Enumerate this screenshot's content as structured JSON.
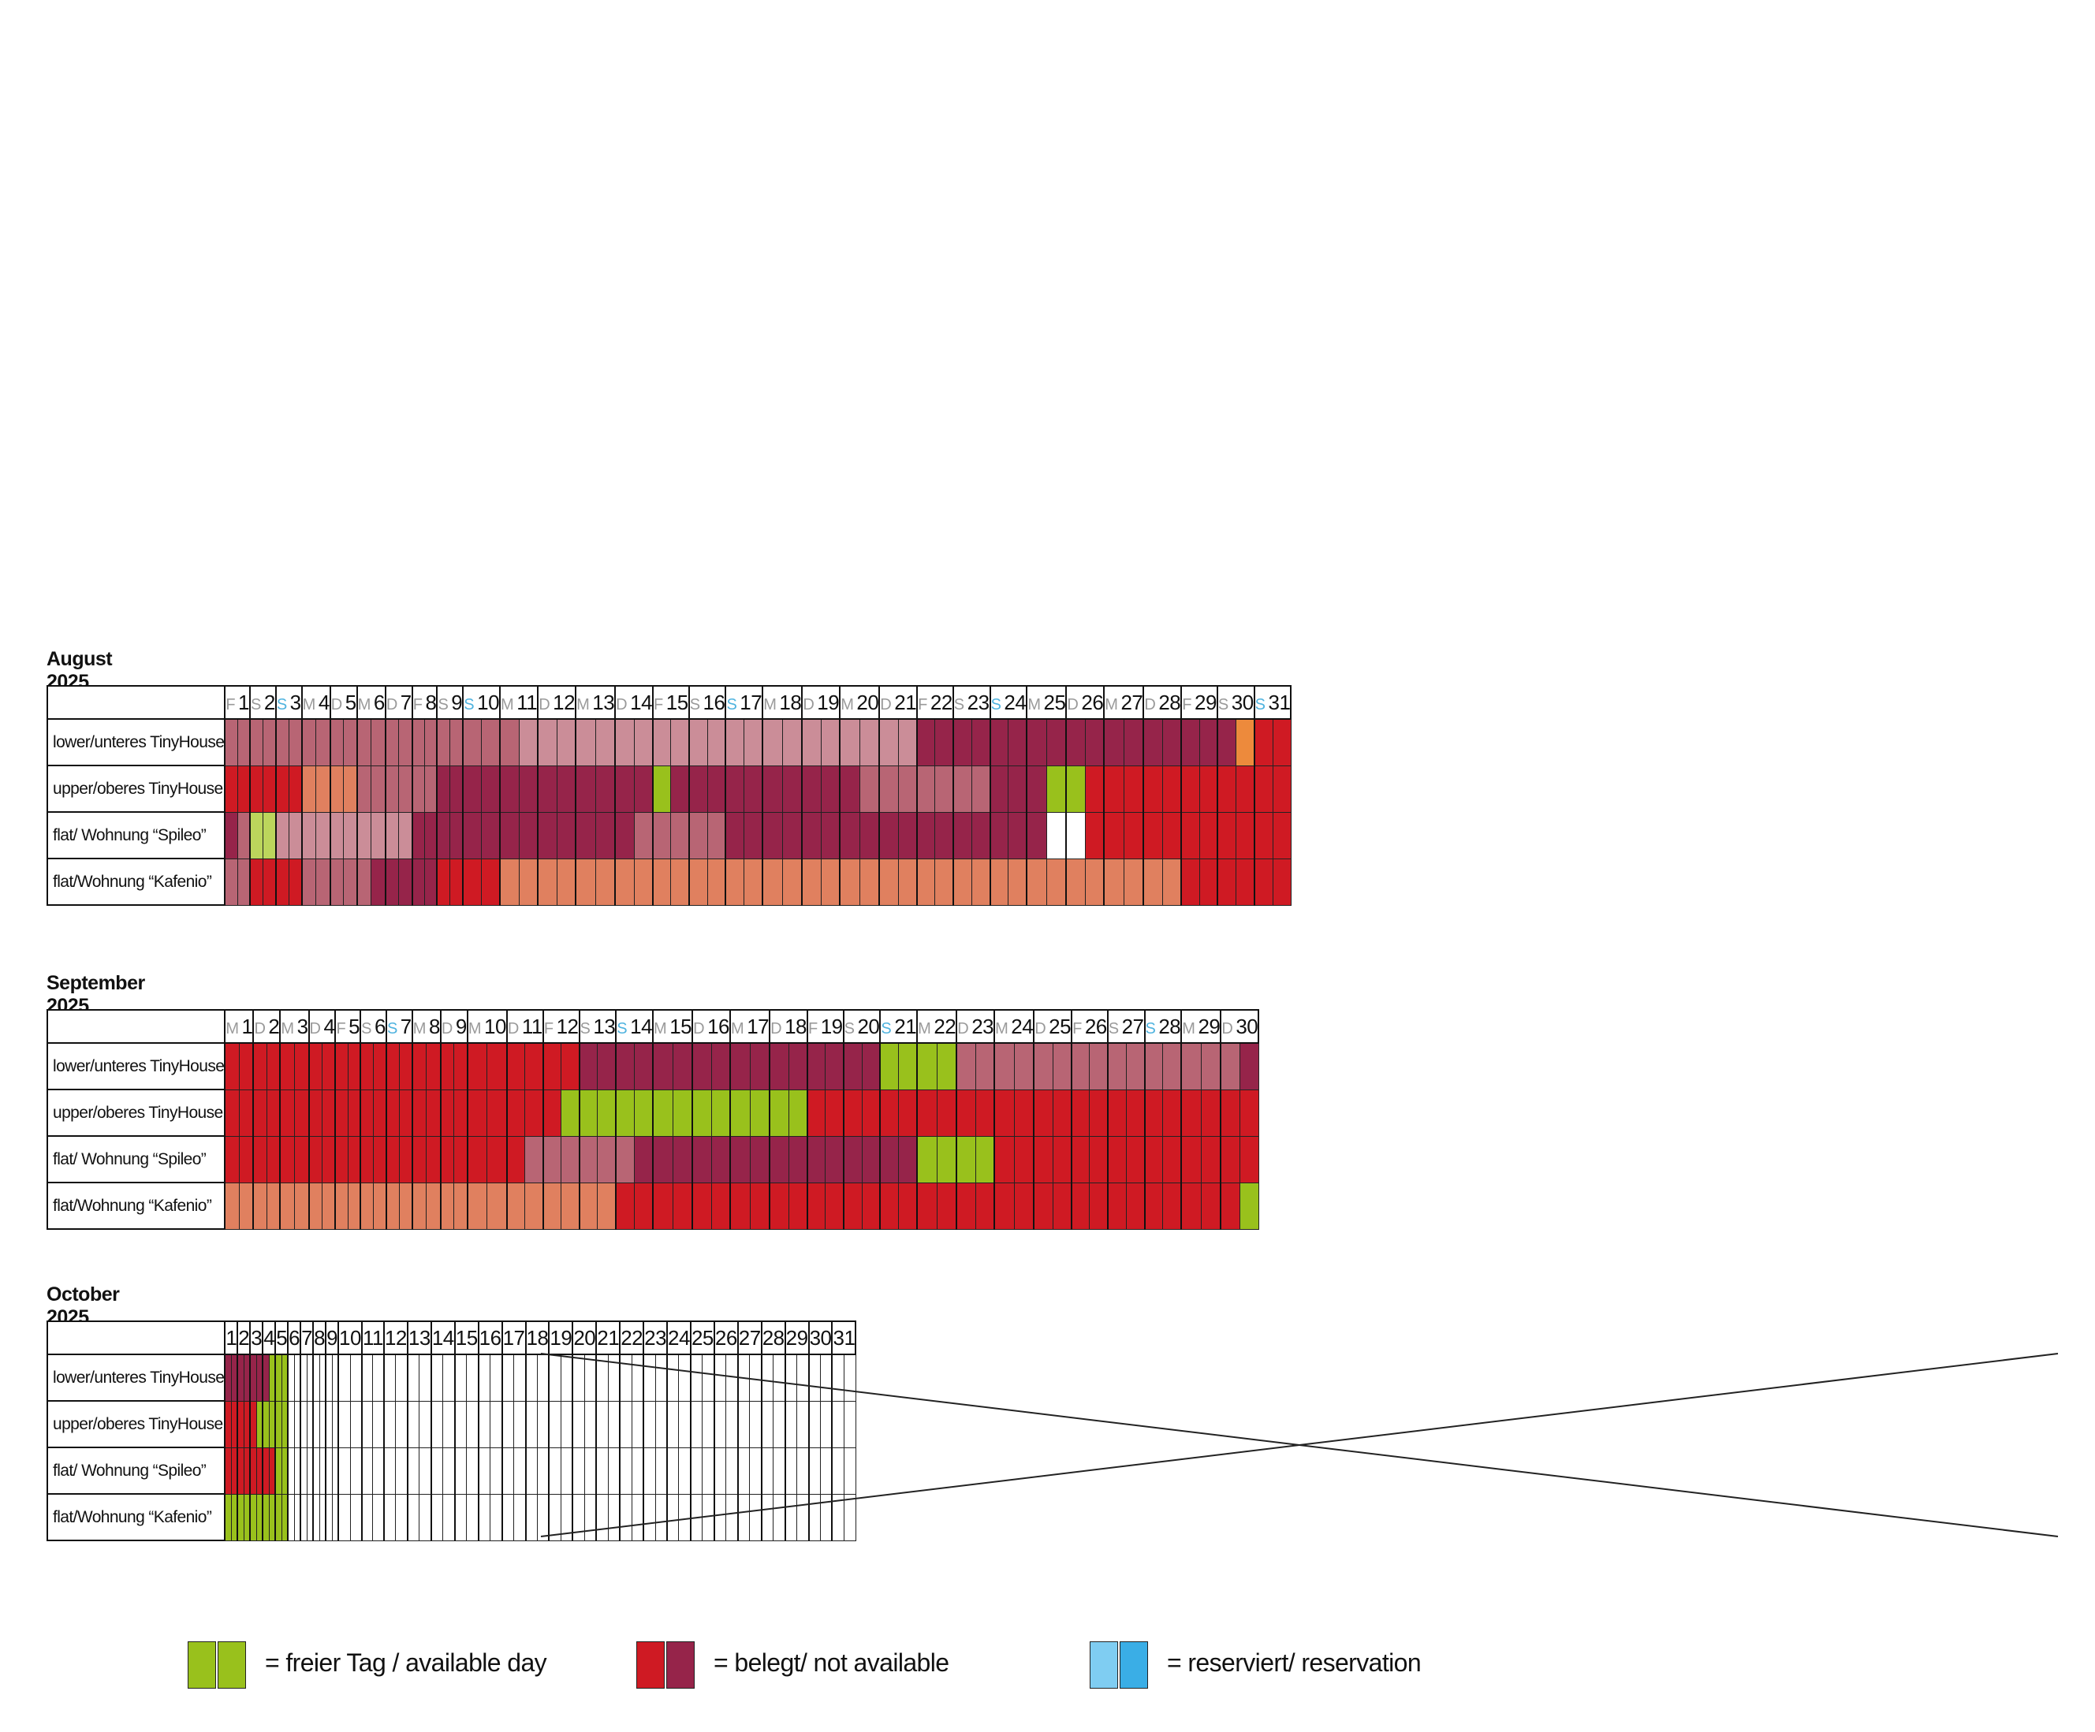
{
  "colors": {
    "G": "#99c11c",
    "g": "#bcd55c",
    "R": "#cf1a23",
    "P": "#96244a",
    "M": "#b86574",
    "L": "#cb8d98",
    "O": "#e0805f",
    "o": "#ed8a3c",
    "W": "#ffffff",
    "B1": "#7fcdf2",
    "B2": "#3aaee6",
    "weekday": "#9a9a9a",
    "sunday": "#4fb3df",
    "grid": "#222222"
  },
  "legend": [
    {
      "colors": [
        "G",
        "G"
      ],
      "label": "= freier Tag / available day"
    },
    {
      "colors": [
        "R",
        "P"
      ],
      "label": "= belegt/ not available"
    },
    {
      "colors": [
        "B1",
        "B2"
      ],
      "label": "= reserviert/ reservation"
    }
  ],
  "months": [
    {
      "title": "August 2025",
      "ndays": 31,
      "weekdays": [
        "F",
        "S",
        "S",
        "M",
        "D",
        "M",
        "D",
        "F",
        "S",
        "S",
        "M",
        "D",
        "M",
        "D",
        "F",
        "S",
        "S",
        "M",
        "D",
        "M",
        "D",
        "F",
        "S",
        "S",
        "M",
        "D",
        "M",
        "D",
        "F",
        "S",
        "S"
      ],
      "crossed_from": null,
      "rooms": [
        {
          "name": "lower/unteres TinyHouse",
          "cells": "MMMMMMMMMMMMMMMMMMMMMMMMMMMMMMMMMMMMMMMLLLLLLLLLLLLLLLLLLLLLLLLLLLLLLLLLLLLLLPPPPPPPPPPPPPPPPPPPPPPPPPPPPPPooRRRR"
        },
        {
          "name": "upper/oberes TinyHouse",
          "cells": "RRRRRRRRRROOOOOOMMMMMMMMMMPPPPPPPPPPPPPPPPPPGGPPPPPPPPPPPPPPPPMMMMMMMMMMPPPPPPGGRRRRRRRRRRRRRRRRRR"
        },
        {
          "name": "flat/ Wohnung “Spileo”",
          "cells": "PMMMgggLLLLLLLLLLLLLLLLPPPPPPPPPPPPPPPPPPPPPPMMMMMMMMMPPPPPPPPPPPPPPPPPPPPPPPPPPPPWWWWRRRRRRRRRRRRRRRRRR"
        },
        {
          "name": "flat/Wohnung “Kafenio”",
          "cells": "MMMRRRRRRRMMMMMMMMMMPPPPPPPPPRRRRRRROOOOOOOOOOOOOOOOOOOOOOOOOOOOOOOOOOOOOOOOOOOOOOOOOOOOOOOOOOOOOOORRRRRRRRRRR"
        }
      ]
    },
    {
      "title": "September 2025",
      "ndays": 30,
      "weekdays": [
        "M",
        "D",
        "M",
        "D",
        "F",
        "S",
        "S",
        "M",
        "D",
        "M",
        "D",
        "F",
        "S",
        "S",
        "M",
        "D",
        "M",
        "D",
        "F",
        "S",
        "S",
        "M",
        "D",
        "M",
        "D",
        "F",
        "S",
        "S",
        "M",
        "D"
      ],
      "crossed_from": null,
      "rooms": [
        {
          "name": "lower/unteres TinyHouse",
          "cells": "RRRRRRRRRRRRRRRRRRRRRRRRRRRRRRRRRRRRRRRRRRRRRRRRRRRRRRRRRRRRRRRRRRRPPPPPPPPPPPPPPPPPPPPPPPPPPPPPPPPPPPPPPPPPPPPPGGGGGGGGGGGGMMMMMMMMMMMMMMMMMMMMMMMMMMMMMMMMMMMMMMMMMMPPP"
        },
        {
          "name": "upper/oberes TinyHouse",
          "cells": "RRRRRRRRRRRRRRRRRRRRRRRRRRRRRRRRRRRRRRRRRRRRRRRRRRRRRRRRRRRRRRRRRRRRGGGGGGGGGGGGGGGGGGGGGGGGGGGGGGGGGGGGGGGGRRRRRRRRRRRRRRRRRRRRRRRRRRRRRRRRRRRRRRRRRRRRRRRRRRRRRRRRRRRRRRRRRRRRRR"
        },
        {
          "name": "flat/ Wohnung “Spileo”",
          "cells": "RRRRRRRRRRRRRRRRRRRRRRRRRRRRRRRRRRRRRRRRRRRRRRRRRRRRRRRRRRRRRRRRRRRMMMMMMMMMMMMMMMMMMMPPPPPPPPPPPPPPPPPPPPPPPPPPPPPPPPPPPPPPPPPPPPPPGGGGGGGGGGGGRRRRRRRRRRRRRRRRRRRRRRRRRRRRRRRRRRRRRRRRRRRR"
        },
        {
          "name": "flat/Wohnung “Kafenio”",
          "cells": "ROOOOOOOOOOOOOOOOOOOOOOOOOOOOOOOOOOOOOOOOOOOOOOOOOOOOOOOOOOOOOOOOOOOOOORRRRRRRRRRRRRRRRRRRRRRRRRRRRRRRRRRRRRRRRRRRRRRRRRRRRRRRRRRRRRRRRRRRRRRRRRRRRRRRRRRRRRRRRRRRGGG"
        }
      ]
    },
    {
      "title": "October 2025",
      "ndays": 31,
      "weekdays": [],
      "crossed_from": 6,
      "rooms": [
        {
          "name": "lower/unteres TinyHouse",
          "cells": "PPPPPPPGGG"
        },
        {
          "name": "upper/oberes TinyHouse",
          "cells": "RRRRRGGGGG"
        },
        {
          "name": "flat/ Wohnung “Spileo”",
          "cells": "RRRRRRRRGG"
        },
        {
          "name": "flat/Wohnung “Kafenio”",
          "cells": "GGGGGGGGGG"
        }
      ]
    }
  ]
}
